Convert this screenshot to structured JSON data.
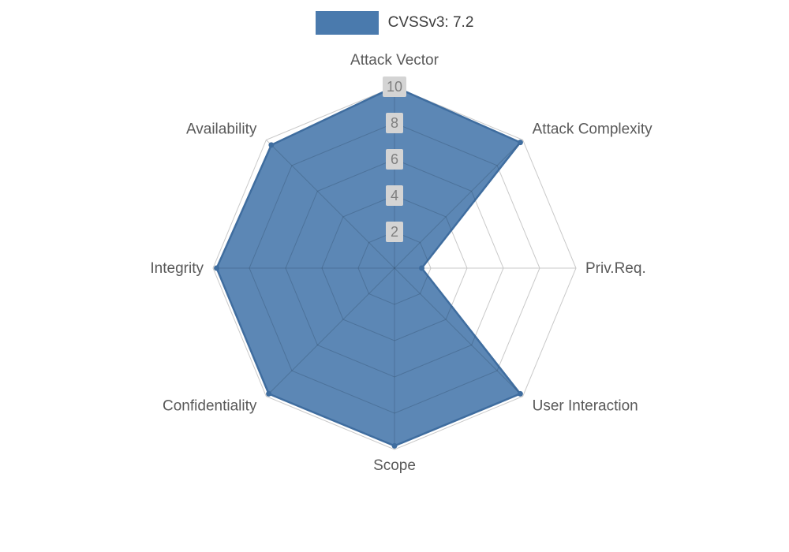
{
  "chart_data": {
    "type": "radar",
    "title": "CVSSv3: 7.2",
    "legend_position": "top",
    "grid": true,
    "max": 10,
    "ticks": [
      2,
      4,
      6,
      8,
      10
    ],
    "categories": [
      "Attack Vector",
      "Attack Complexity",
      "Priv.Req.",
      "User Interaction",
      "Scope",
      "Confidentiality",
      "Integrity",
      "Availability"
    ],
    "series": [
      {
        "name": "CVSSv3: 7.2",
        "values": [
          10,
          9.8,
          1.5,
          9.8,
          9.8,
          9.8,
          9.8,
          9.6
        ]
      }
    ],
    "colors": {
      "fill": "#4a7aad",
      "edge": "#3f6d9f",
      "grid": "#c9c9c9",
      "grid_overlay": "rgba(0,0,0,0.12)",
      "tick_bg": "#d4d4d4",
      "tick_text": "#7f7f7f",
      "label_text": "#595959",
      "legend_text": "#3c3c3c"
    }
  },
  "legend": {
    "label": "CVSSv3: 7.2"
  }
}
